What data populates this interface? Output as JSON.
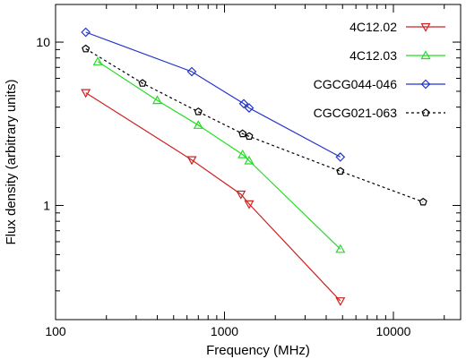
{
  "chart_data": {
    "type": "line",
    "xlabel": "Frequency (MHz)",
    "ylabel": "Flux density (arbitrary units)",
    "xscale": "log",
    "yscale": "log",
    "xlim": [
      100,
      25000
    ],
    "ylim": [
      0.2,
      17
    ],
    "grid": false,
    "legend": "top-right",
    "x_ticks": [
      {
        "value": 100,
        "label": "100"
      },
      {
        "value": 1000,
        "label": "1000"
      },
      {
        "value": 10000,
        "label": "10000"
      }
    ],
    "y_ticks": [
      {
        "value": 1,
        "label": "1"
      },
      {
        "value": 10,
        "label": "10"
      }
    ],
    "series": [
      {
        "name": "4C12.02",
        "color": "#cc2222",
        "marker": "triangle-down",
        "dashed": false,
        "x": [
          151,
          640,
          1250,
          1400,
          4850
        ],
        "y": [
          4.9,
          1.9,
          1.17,
          1.02,
          0.26
        ]
      },
      {
        "name": "4C12.03",
        "color": "#22dd22",
        "marker": "triangle-up",
        "dashed": false,
        "x": [
          178,
          400,
          700,
          1280,
          1400,
          4850
        ],
        "y": [
          7.6,
          4.4,
          3.1,
          2.05,
          1.88,
          0.54
        ]
      },
      {
        "name": "CGCG044-046",
        "color": "#2233cc",
        "marker": "diamond",
        "dashed": false,
        "x": [
          151,
          640,
          1300,
          1400,
          4850
        ],
        "y": [
          11.5,
          6.6,
          4.2,
          3.95,
          1.98
        ]
      },
      {
        "name": "CGCG021-063",
        "color": "#000000",
        "marker": "pentagon",
        "dashed": true,
        "x": [
          151,
          327,
          700,
          1280,
          1400,
          4850,
          15000
        ],
        "y": [
          9.1,
          5.6,
          3.75,
          2.75,
          2.65,
          1.62,
          1.05
        ]
      }
    ]
  }
}
